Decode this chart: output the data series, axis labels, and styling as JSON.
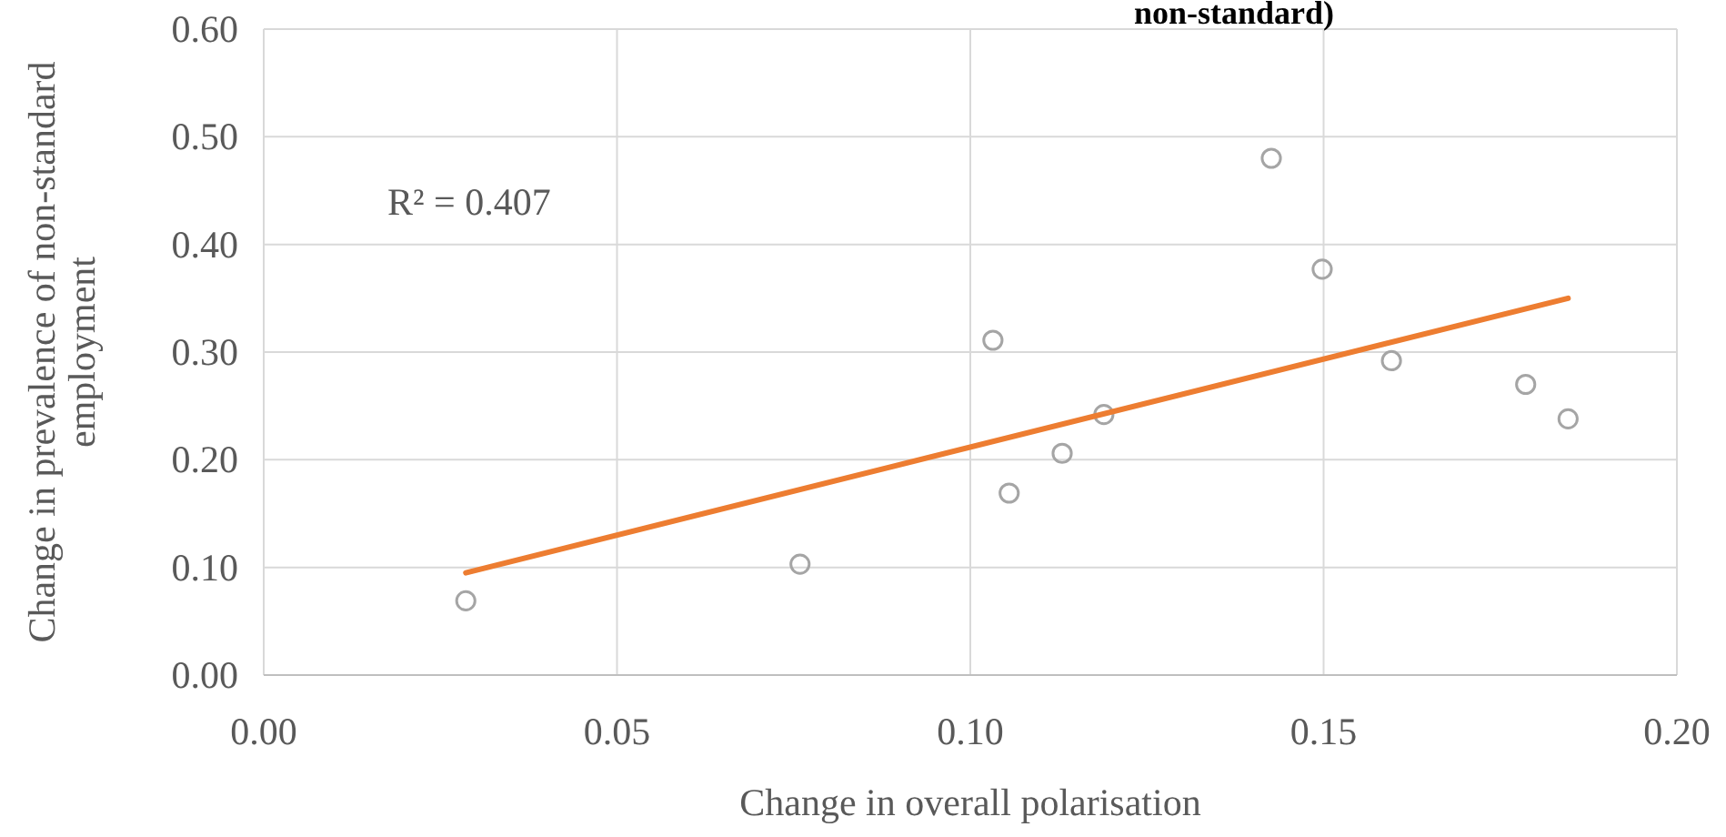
{
  "chart_data": {
    "type": "scatter",
    "title": "non-standard)",
    "xlabel": "Change in overall polarisation",
    "ylabel": "Change in prevalence of non-standard employment",
    "annotations": [
      "R² = 0.407"
    ],
    "xlim": [
      0,
      0.2
    ],
    "xticks": [
      {
        "value": 0,
        "label": "0.00"
      },
      {
        "value": 0.05,
        "label": "0.05"
      },
      {
        "value": 0.1,
        "label": "0.10"
      },
      {
        "value": 0.15,
        "label": "0.15"
      },
      {
        "value": 0.2,
        "label": "0.20"
      }
    ],
    "ylim": [
      0,
      0.6
    ],
    "yticks": [
      {
        "value": 0,
        "label": "0.00"
      },
      {
        "value": 0.1,
        "label": "0.10"
      },
      {
        "value": 0.2,
        "label": "0.20"
      },
      {
        "value": 0.3,
        "label": "0.30"
      },
      {
        "value": 0.4,
        "label": "0.40"
      },
      {
        "value": 0.5,
        "label": "0.50"
      },
      {
        "value": 0.6,
        "label": "0.60"
      }
    ],
    "grid": true,
    "series": [
      {
        "marker": "circle",
        "color": "#a5a5a5",
        "x": [
          0.0286,
          0.0759,
          0.1032,
          0.1055,
          0.113,
          0.1189,
          0.1426,
          0.1498,
          0.1596,
          0.1786,
          0.1846
        ],
        "values": [
          0.069,
          0.103,
          0.311,
          0.169,
          0.206,
          0.242,
          0.48,
          0.377,
          0.292,
          0.27,
          0.238
        ]
      },
      {
        "type": "line",
        "color": "#ed7d31",
        "x": [
          0.0286,
          0.1846
        ],
        "values": [
          0.095,
          0.35
        ]
      }
    ]
  }
}
